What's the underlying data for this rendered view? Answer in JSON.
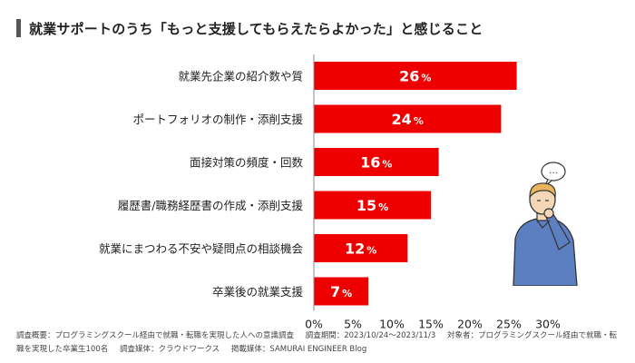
{
  "header": {
    "title": "就業サポートのうち「もっと支援してもらえたらよかった」と感じること"
  },
  "chart_data": {
    "type": "bar",
    "orientation": "horizontal",
    "title": "就業サポートのうち「もっと支援してもらえたらよかった」と感じること",
    "categories": [
      "就業先企業の紹介数や質",
      "ポートフォリオの制作・添削支援",
      "面接対策の頻度・回数",
      "履歴書/職務経歴書の作成・添削支援",
      "就業にまつわる不安や疑問点の相談機会",
      "卒業後の就業支援"
    ],
    "values": [
      26,
      24,
      16,
      15,
      12,
      7
    ],
    "value_suffix": "%",
    "xlim": [
      0,
      30
    ],
    "xticks": [
      0,
      5,
      10,
      15,
      20,
      25,
      30
    ],
    "xtick_labels": [
      "0%",
      "5%",
      "10%",
      "15%",
      "20%",
      "25%",
      "30%"
    ],
    "grid": false,
    "bar_color": "#ee0000",
    "label_color": "#ffffff"
  },
  "footnote": {
    "survey_overview": "調査概要：プログラミングスクール経由で就職・転職を実現した人への意識調査",
    "survey_period": "調査期間：2023/10/24〜2023/11/3",
    "target": "対象者：プログラミングスクール経由で就職・転職を実現した卒業生100名",
    "medium": "調査媒体：クラウドワークス",
    "published": "掲載媒体：SAMURAI ENGINEER Blog"
  },
  "illustration": {
    "speech_bubble": "…"
  }
}
